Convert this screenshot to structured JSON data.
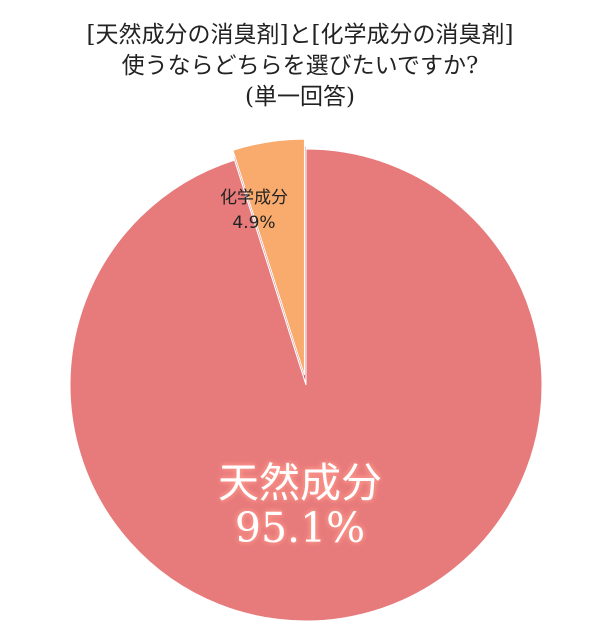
{
  "title_lines": [
    "[天然成分の消臭剤]と[化学成分の消臭剤]",
    "使うならどちらを選びたいですか?",
    "(単一回答)"
  ],
  "chart_data": {
    "type": "pie",
    "title": "[天然成分の消臭剤]と[化学成分の消臭剤] 使うならどちらを選びたいですか? (単一回答)",
    "series": [
      {
        "name": "天然成分",
        "value": 95.1,
        "label": "95.1%",
        "color": "#e77a7b"
      },
      {
        "name": "化学成分",
        "value": 4.9,
        "label": "4.9%",
        "color": "#f9ab6e",
        "exploded": true
      }
    ],
    "legend": "none"
  }
}
